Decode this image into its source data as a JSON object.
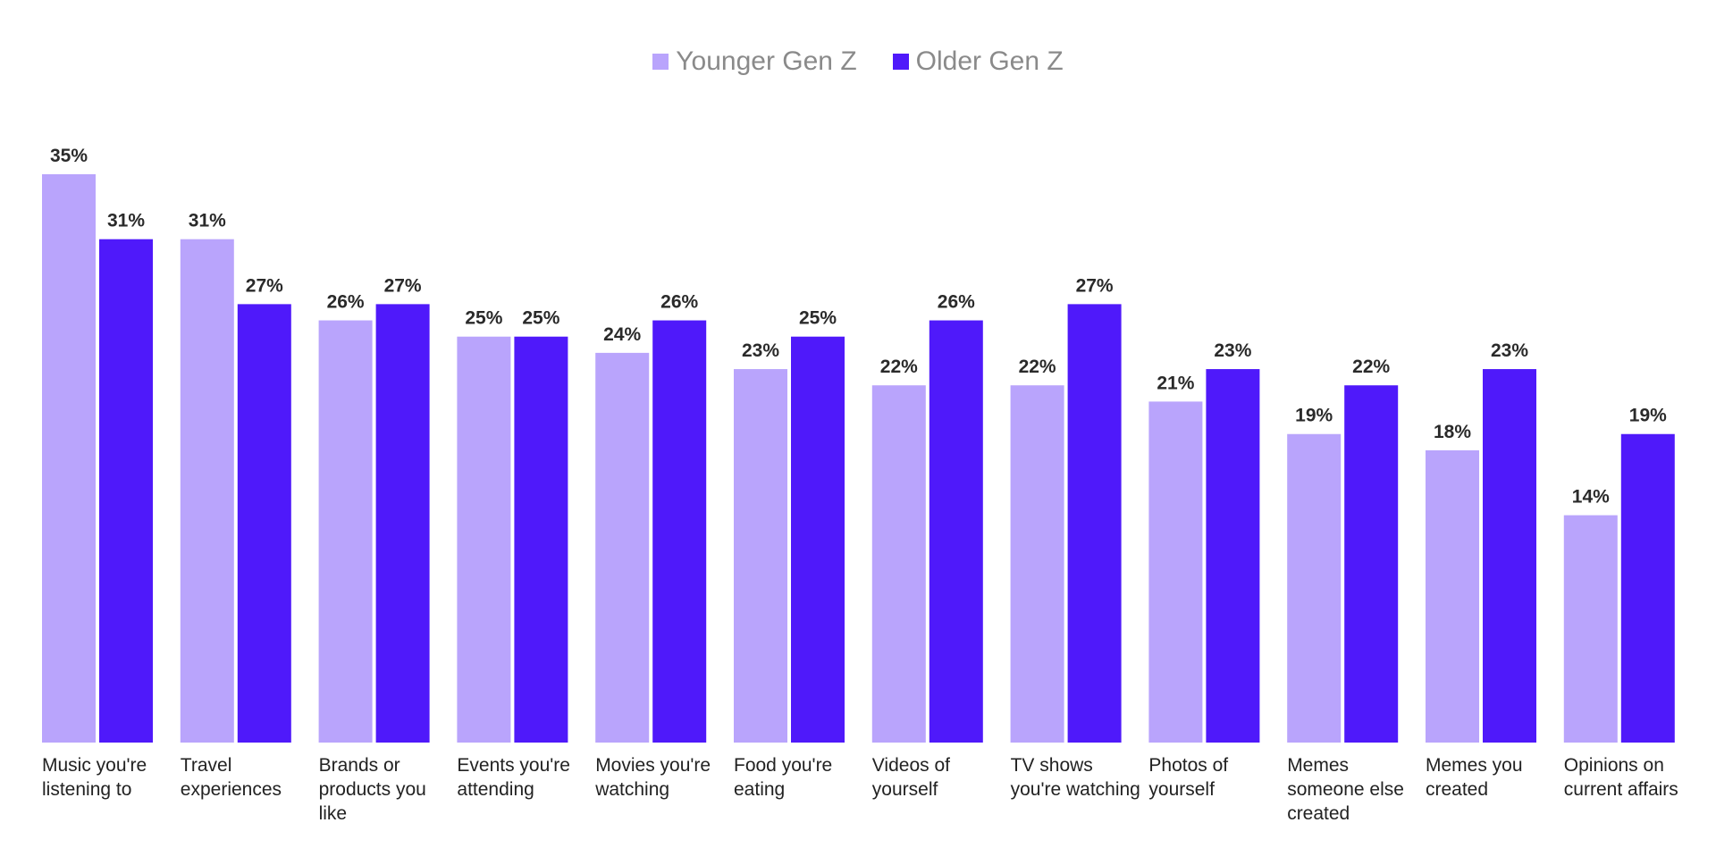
{
  "chart_data": {
    "type": "bar",
    "title": "",
    "xlabel": "",
    "ylabel": "",
    "ylim": [
      0,
      35
    ],
    "grid": false,
    "legend_position": "top-center",
    "categories": [
      "Music you're listening to",
      "Travel experiences",
      "Brands or products you like",
      "Events you're attending",
      "Movies you're watching",
      "Food you're eating",
      "Videos of yourself",
      "TV shows you're watching",
      "Photos of yourself",
      "Memes someone else created",
      "Memes you created",
      "Opinions on current affairs"
    ],
    "category_lines": [
      [
        "Music you're",
        "listening to"
      ],
      [
        "Travel",
        "experiences"
      ],
      [
        "Brands or",
        "products you",
        "like"
      ],
      [
        "Events you're",
        "attending"
      ],
      [
        "Movies you're",
        "watching"
      ],
      [
        "Food you're",
        "eating"
      ],
      [
        "Videos of",
        "yourself"
      ],
      [
        "TV shows",
        "you're watching"
      ],
      [
        "Photos of",
        "yourself"
      ],
      [
        "Memes",
        "someone else",
        "created"
      ],
      [
        "Memes you",
        "created"
      ],
      [
        "Opinions on",
        "current affairs"
      ]
    ],
    "series": [
      {
        "name": "Younger Gen Z",
        "color": "#b9a4fc",
        "values": [
          35,
          31,
          26,
          25,
          24,
          23,
          22,
          22,
          21,
          19,
          18,
          14
        ],
        "labels": [
          "35%",
          "31%",
          "26%",
          "25%",
          "24%",
          "23%",
          "22%",
          "22%",
          "21%",
          "19%",
          "18%",
          "14%"
        ]
      },
      {
        "name": "Older Gen Z",
        "color": "#4f19fa",
        "values": [
          31,
          27,
          27,
          25,
          26,
          25,
          26,
          27,
          23,
          22,
          23,
          19
        ],
        "labels": [
          "31%",
          "27%",
          "27%",
          "25%",
          "26%",
          "25%",
          "26%",
          "27%",
          "23%",
          "22%",
          "23%",
          "19%"
        ]
      }
    ]
  }
}
